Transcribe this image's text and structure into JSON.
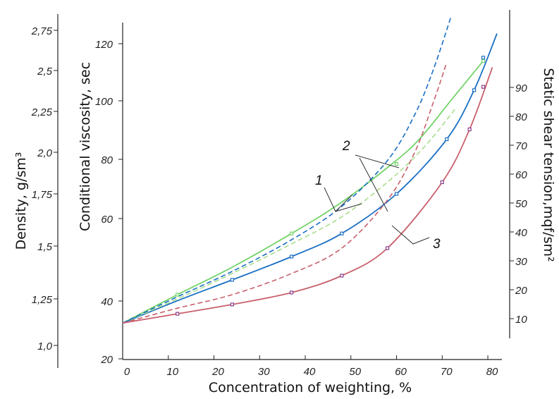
{
  "chart_data": {
    "type": "line",
    "title": "",
    "xlabel": "Concentration of weighting, %",
    "xlim": [
      0,
      82
    ],
    "xticks": [
      "0",
      "10",
      "20",
      "30",
      "40",
      "50",
      "60",
      "70",
      "80"
    ],
    "axes": {
      "density": {
        "label": "Density, g/sm³",
        "ticks": [
          "1,0",
          "1,25",
          "1,5",
          "1,75",
          "2,0",
          "2,25",
          "2,5",
          "2,75"
        ]
      },
      "viscosity": {
        "label": "Conditional viscosity, sec",
        "ticks": [
          "20",
          "40",
          "60",
          "80",
          "100",
          "120"
        ]
      },
      "shear": {
        "label": "Static shear tension,mqf/sm²",
        "ticks": [
          "10",
          "20",
          "30",
          "40",
          "50",
          "60",
          "70",
          "80",
          "90"
        ]
      }
    },
    "curve_labels": [
      "1",
      "2",
      "3"
    ],
    "series": [
      {
        "color": "#74d36a",
        "dash": "solid",
        "x": [
          0,
          12,
          24,
          37,
          48,
          59,
          65,
          72,
          79
        ],
        "y": [
          1.12,
          1.27,
          1.4,
          1.56,
          1.71,
          1.93,
          2.08,
          2.32,
          2.56
        ]
      },
      {
        "color": "#1a6fc4",
        "dash": "solid",
        "x": [
          0,
          12,
          24,
          37,
          48,
          60,
          71,
          77,
          82
        ],
        "y": [
          1.12,
          1.24,
          1.34,
          1.45,
          1.56,
          1.75,
          2.08,
          2.38,
          2.73
        ]
      },
      {
        "color": "#c8606c",
        "dash": "solid",
        "x": [
          0,
          12,
          24,
          37,
          48,
          58,
          70,
          76,
          81
        ],
        "y": [
          1.12,
          1.17,
          1.22,
          1.28,
          1.36,
          1.49,
          1.82,
          2.14,
          2.52
        ]
      },
      {
        "color": "#a9dd8a",
        "dash": "dashed",
        "x": [
          0,
          12,
          24,
          37,
          48,
          58,
          66,
          73
        ],
        "y": [
          1.12,
          1.25,
          1.37,
          1.51,
          1.64,
          1.82,
          2.03,
          2.27
        ]
      },
      {
        "color": "#1a6fc4",
        "dash": "dashed",
        "x": [
          0,
          12,
          24,
          37,
          48,
          58,
          64,
          68,
          72
        ],
        "y": [
          1.12,
          1.26,
          1.38,
          1.53,
          1.69,
          1.95,
          2.23,
          2.5,
          2.84
        ]
      },
      {
        "color": "#c8606c",
        "dash": "dashed",
        "x": [
          0,
          12,
          24,
          37,
          48,
          58,
          64,
          68,
          71
        ],
        "y": [
          1.12,
          1.2,
          1.27,
          1.37,
          1.49,
          1.72,
          2.0,
          2.3,
          2.55
        ]
      }
    ],
    "markers": [
      {
        "color": "#74d36a",
        "x": [
          12,
          37,
          60,
          79
        ],
        "y": [
          1.27,
          1.56,
          1.93,
          2.56
        ]
      },
      {
        "color": "#1a6fc4",
        "x": [
          24,
          37,
          48,
          60,
          71,
          77,
          79
        ],
        "y": [
          1.34,
          1.45,
          1.56,
          1.75,
          2.08,
          2.38,
          2.58
        ]
      },
      {
        "color": "#8a3d8a",
        "x": [
          12,
          24,
          37,
          48,
          58,
          70,
          76,
          79
        ],
        "y": [
          1.17,
          1.22,
          1.28,
          1.36,
          1.49,
          1.82,
          2.14,
          2.4
        ]
      }
    ]
  }
}
